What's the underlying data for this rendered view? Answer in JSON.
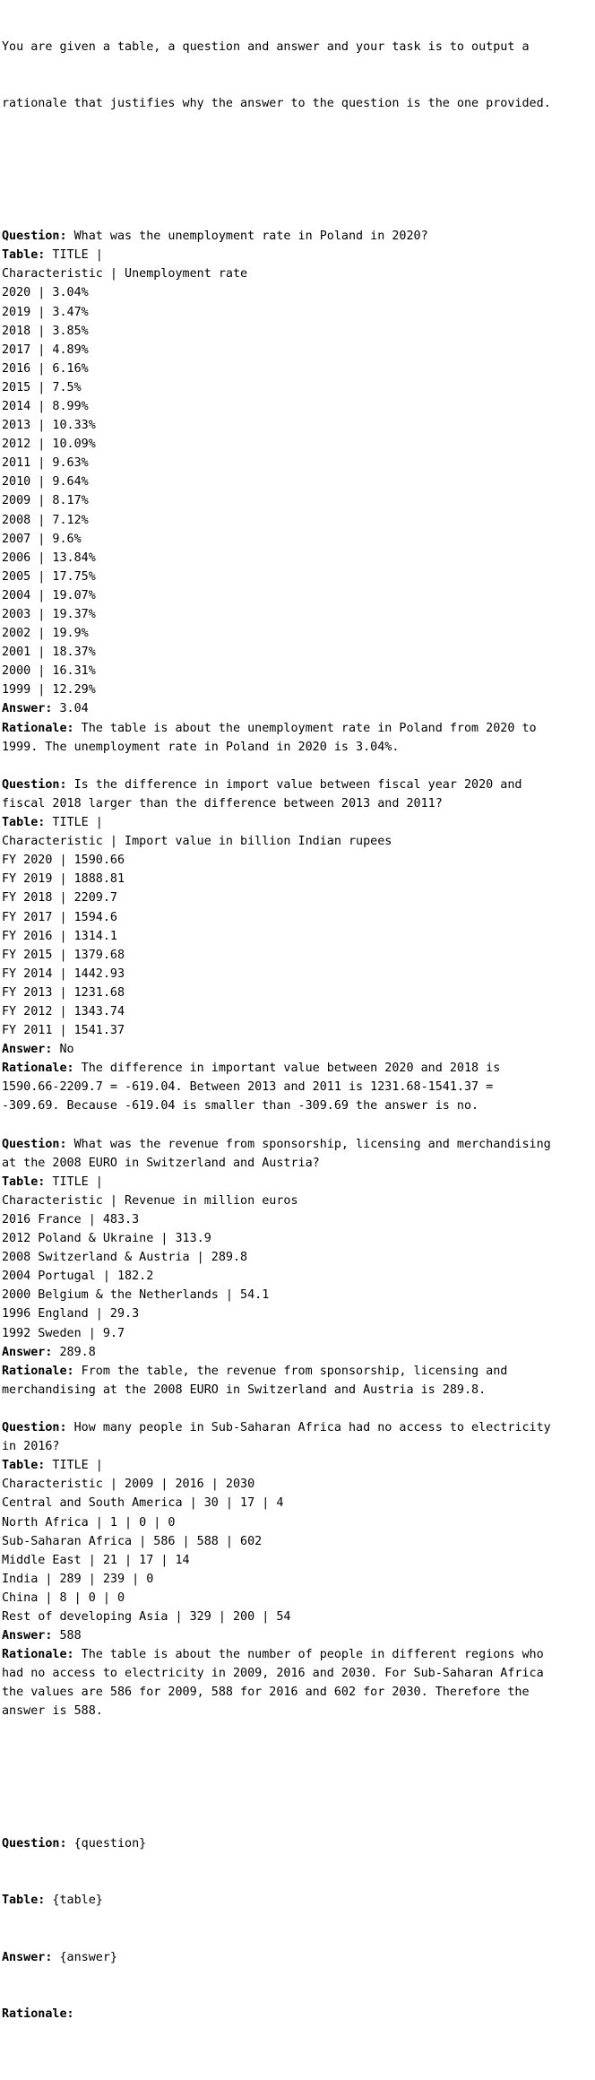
{
  "intro": [
    "You are given a table, a question and answer and your task is to output a",
    "rationale that justifies why the answer to the question is the one provided."
  ],
  "labels": {
    "question": "Question:",
    "table": "Table:",
    "answer": "Answer:",
    "rationale": "Rationale:"
  },
  "examples": [
    {
      "question": [
        " What was the unemployment rate in Poland in 2020?"
      ],
      "table_first": " TITLE |",
      "table_rows": [
        "Characteristic | Unemployment rate",
        "2020 | 3.04%",
        "2019 | 3.47%",
        "2018 | 3.85%",
        "2017 | 4.89%",
        "2016 | 6.16%",
        "2015 | 7.5%",
        "2014 | 8.99%",
        "2013 | 10.33%",
        "2012 | 10.09%",
        "2011 | 9.63%",
        "2010 | 9.64%",
        "2009 | 8.17%",
        "2008 | 7.12%",
        "2007 | 9.6%",
        "2006 | 13.84%",
        "2005 | 17.75%",
        "2004 | 19.07%",
        "2003 | 19.37%",
        "2002 | 19.9%",
        "2001 | 18.37%",
        "2000 | 16.31%",
        "1999 | 12.29%"
      ],
      "answer": " 3.04",
      "rationale": [
        " The table is about the unemployment rate in Poland from 2020 to",
        "1999. The unemployment rate in Poland in 2020 is 3.04%."
      ]
    },
    {
      "question": [
        " Is the difference in import value between fiscal year 2020 and",
        "fiscal 2018 larger than the difference between 2013 and 2011?"
      ],
      "table_first": " TITLE |",
      "table_rows": [
        "Characteristic | Import value in billion Indian rupees",
        "FY 2020 | 1590.66",
        "FY 2019 | 1888.81",
        "FY 2018 | 2209.7",
        "FY 2017 | 1594.6",
        "FY 2016 | 1314.1",
        "FY 2015 | 1379.68",
        "FY 2014 | 1442.93",
        "FY 2013 | 1231.68",
        "FY 2012 | 1343.74",
        "FY 2011 | 1541.37"
      ],
      "answer": " No",
      "rationale": [
        " The difference in important value between 2020 and 2018 is",
        "1590.66-2209.7 = -619.04. Between 2013 and 2011 is 1231.68-1541.37 =",
        "-309.69. Because -619.04 is smaller than -309.69 the answer is no."
      ]
    },
    {
      "question": [
        " What was the revenue from sponsorship, licensing and merchandising",
        "at the 2008 EURO in Switzerland and Austria?"
      ],
      "table_first": " TITLE |",
      "table_rows": [
        "Characteristic | Revenue in million euros",
        "2016 France | 483.3",
        "2012 Poland & Ukraine | 313.9",
        "2008 Switzerland & Austria | 289.8",
        "2004 Portugal | 182.2",
        "2000 Belgium & the Netherlands | 54.1",
        "1996 England | 29.3",
        "1992 Sweden | 9.7"
      ],
      "answer": " 289.8",
      "rationale": [
        " From the table, the revenue from sponsorship, licensing and",
        "merchandising at the 2008 EURO in Switzerland and Austria is 289.8."
      ]
    },
    {
      "question": [
        " How many people in Sub-Saharan Africa had no access to electricity",
        "in 2016?"
      ],
      "table_first": " TITLE |",
      "table_rows": [
        "Characteristic | 2009 | 2016 | 2030",
        "Central and South America | 30 | 17 | 4",
        "North Africa | 1 | 0 | 0",
        "Sub-Saharan Africa | 586 | 588 | 602",
        "Middle East | 21 | 17 | 14",
        "India | 289 | 239 | 0",
        "China | 8 | 0 | 0",
        "Rest of developing Asia | 329 | 200 | 54"
      ],
      "answer": " 588",
      "rationale": [
        " The table is about the number of people in different regions who",
        "had no access to electricity in 2009, 2016 and 2030. For Sub-Saharan Africa",
        "the values are 586 for 2009, 588 for 2016 and 602 for 2030. Therefore the",
        "answer is 588."
      ]
    }
  ],
  "template": {
    "question": " {question}",
    "table": " {table}",
    "answer": " {answer}",
    "rationale": ""
  }
}
